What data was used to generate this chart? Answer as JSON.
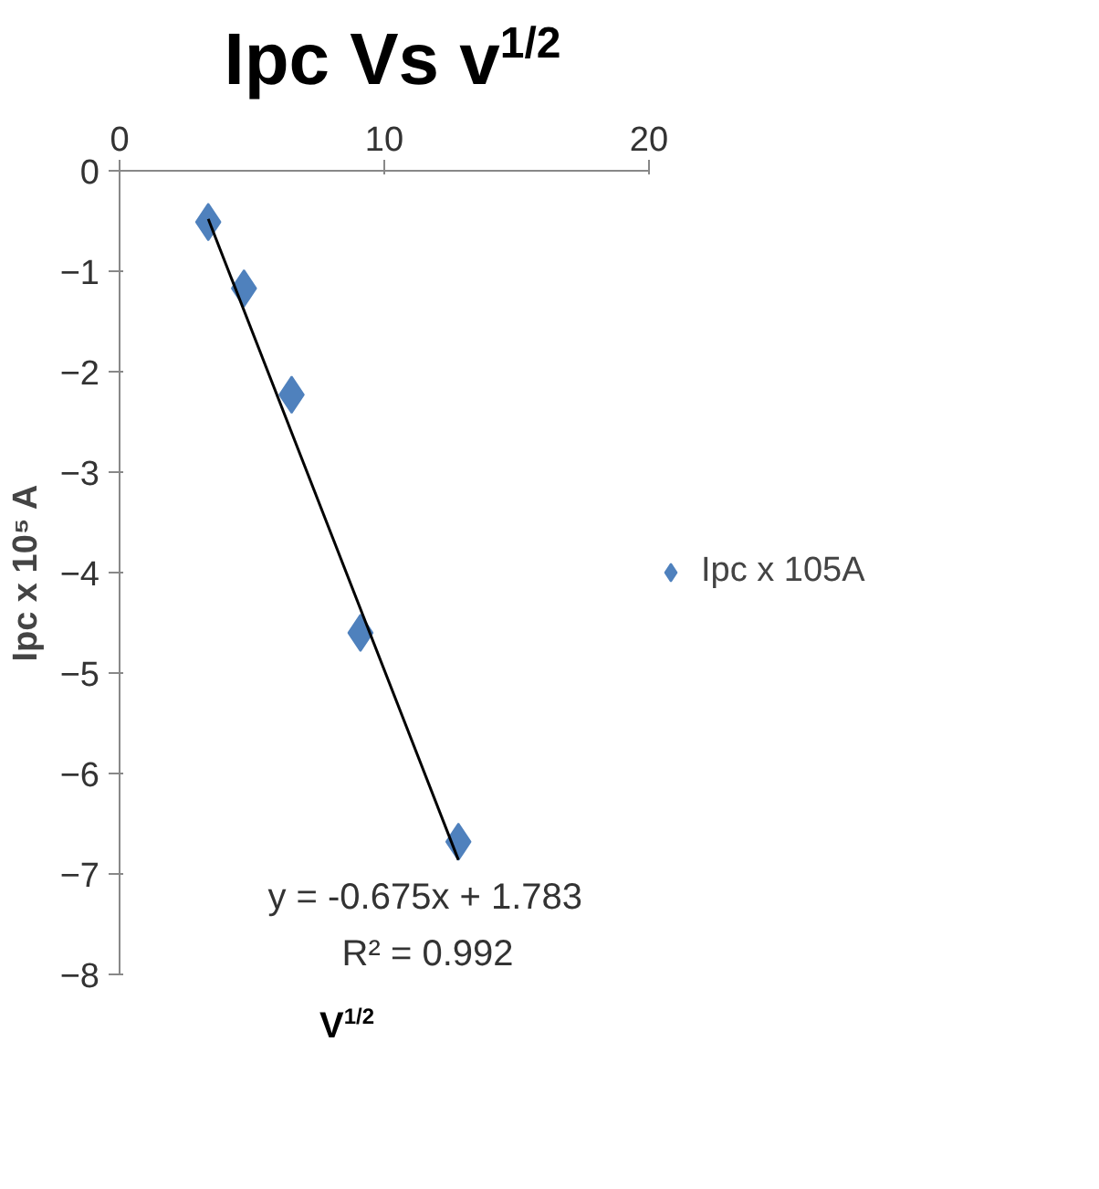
{
  "chart_data": {
    "type": "scatter",
    "title": "Ipc Vs v$^{1/2}$",
    "xlabel": "V$^{1/2}$",
    "ylabel": "Ipc x 10⁵ A",
    "series": [
      {
        "name": "Ipc x 105A",
        "color": "#4f81bd",
        "marker": "diamond",
        "x": [
          3.35,
          4.7,
          6.5,
          9.1,
          12.8
        ],
        "values": [
          -0.51,
          -1.17,
          -2.23,
          -4.6,
          -6.68
        ]
      },
      {
        "color": "#000000",
        "type": "line",
        "marker": "none",
        "x": [
          3.35,
          12.8
        ],
        "values": [
          -0.48,
          -6.86
        ]
      }
    ],
    "xlim": [
      0,
      20
    ],
    "xticks": [
      0,
      10,
      20
    ],
    "ylim": [
      -8,
      0
    ],
    "yticks": [
      0,
      -1,
      -2,
      -3,
      -4,
      -5,
      -6,
      -7,
      -8
    ],
    "grid": false,
    "legend": "right",
    "annotations": [
      "y = -0.675x + 1.783",
      "R² = 0.992"
    ]
  }
}
